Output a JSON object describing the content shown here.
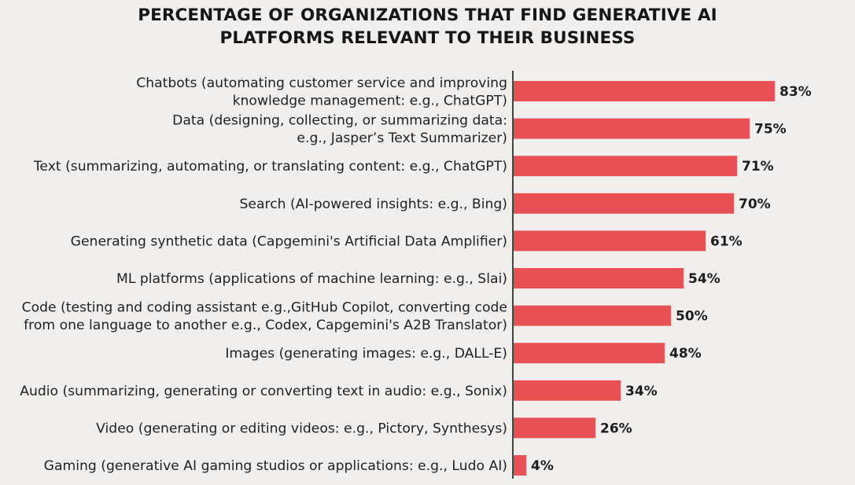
{
  "chart_data": {
    "type": "bar",
    "orientation": "horizontal",
    "title_lines": [
      "PERCENTAGE OF ORGANIZATIONS THAT FIND GENERATIVE AI",
      "PLATFORMS RELEVANT TO THEIR BUSINESS"
    ],
    "categories": [
      [
        "Chatbots (automating customer service and improving",
        "knowledge management: e.g., ChatGPT)"
      ],
      [
        "Data (designing, collecting, or summarizing data:",
        "e.g., Jasper’s Text Summarizer)"
      ],
      [
        "Text (summarizing, automating, or translating content: e.g., ChatGPT)"
      ],
      [
        "Search (AI-powered insights: e.g., Bing)"
      ],
      [
        "Generating synthetic data (Capgemini's Artificial Data Amplifier)"
      ],
      [
        "ML platforms (applications of machine learning: e.g., Slai)"
      ],
      [
        "Code (testing and coding assistant e.g.,GitHub Copilot, converting code",
        "from one language to another e.g., Codex, Capgemini's A2B Translator)"
      ],
      [
        "Images (generating images: e.g., DALL-E)"
      ],
      [
        "Audio (summarizing, generating or converting text in audio: e.g., Sonix)"
      ],
      [
        "Video (generating or editing videos: e.g., Pictory, Synthesys)"
      ],
      [
        "Gaming (generative AI gaming studios or applications: e.g., Ludo AI)"
      ]
    ],
    "values": [
      83,
      75,
      71,
      70,
      61,
      54,
      50,
      48,
      34,
      26,
      4
    ],
    "value_labels": [
      "83%",
      "75%",
      "71%",
      "70%",
      "61%",
      "54%",
      "50%",
      "48%",
      "34%",
      "26%",
      "4%"
    ],
    "unit": "%",
    "xlim": [
      0,
      100
    ],
    "grid": false,
    "bar_color": "#e85055",
    "axis_color": "#1a1a1a",
    "background": "#f0efee"
  }
}
